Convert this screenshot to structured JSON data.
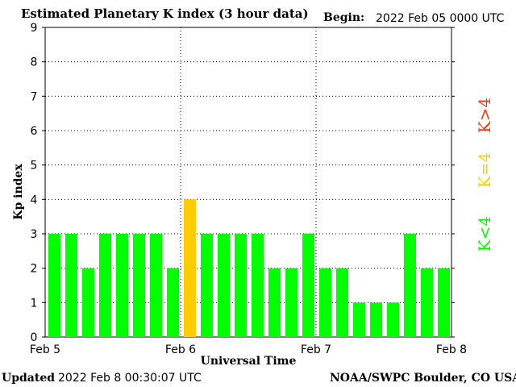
{
  "header": {
    "title": "Estimated Planetary K index (3 hour data)",
    "begin_label": "Begin:",
    "begin_value": "2022 Feb 05 0000 UTC"
  },
  "footer": {
    "updated_label": "Updated",
    "updated_value": "2022 Feb  8 00:30:07 UTC",
    "credit": "NOAA/SWPC Boulder, CO USA"
  },
  "chart_data": {
    "type": "bar",
    "title": "Estimated Planetary K index (3 hour data)",
    "xlabel": "Universal Time",
    "ylabel": "Kp index",
    "ylim": [
      0,
      9
    ],
    "yticks": [
      "0",
      "1",
      "2",
      "3",
      "4",
      "5",
      "6",
      "7",
      "8",
      "9"
    ],
    "xticks": [
      "Feb 5",
      "Feb 6",
      "Feb 7",
      "Feb 8"
    ],
    "grid": "dotted",
    "values": [
      3,
      3,
      2,
      3,
      3,
      3,
      3,
      2,
      4,
      3,
      3,
      3,
      3,
      2,
      2,
      3,
      2,
      2,
      1,
      1,
      1,
      3,
      2,
      2
    ],
    "colors": {
      "low": "#00ff00",
      "mid": "#ffcc00",
      "high": "#ff3300"
    },
    "legend": [
      {
        "label": "K<4",
        "color": "#00ff00"
      },
      {
        "label": "K=4",
        "color": "#ffcc00"
      },
      {
        "label": "K>4",
        "color": "#ff3300"
      }
    ],
    "legend_placement": "right"
  }
}
